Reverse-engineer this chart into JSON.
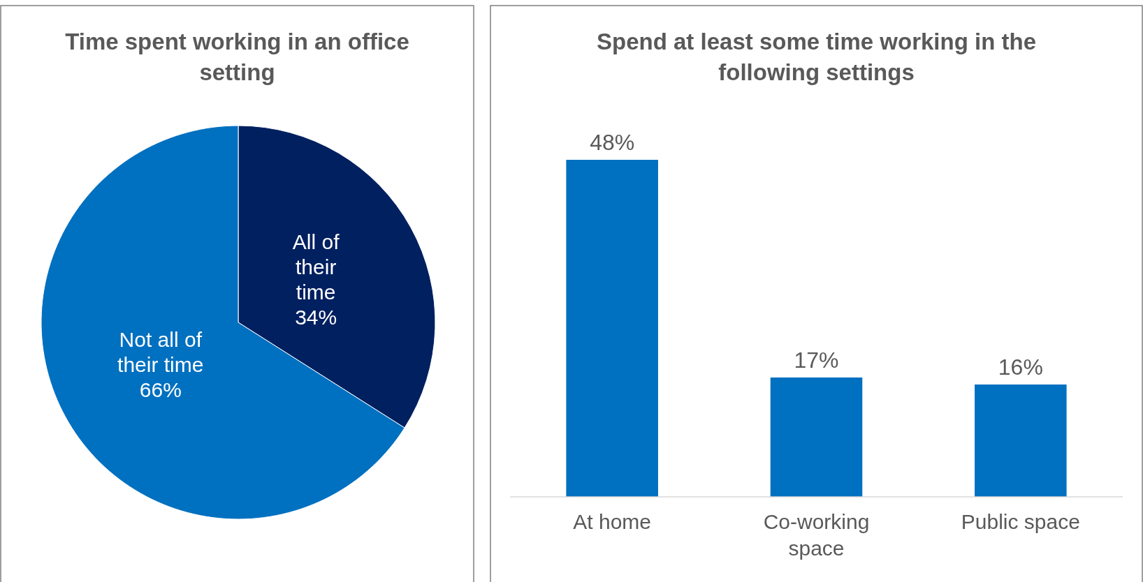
{
  "chart_data": [
    {
      "type": "pie",
      "title": "Time spent working in an office setting",
      "categories": [
        "All of their time",
        "Not all of their time"
      ],
      "values": [
        34,
        66
      ],
      "value_labels": [
        "34%",
        "66%"
      ],
      "colors": [
        "#002060",
        "#0070c0"
      ]
    },
    {
      "type": "bar",
      "title": "Spend at least some time working in the following settings",
      "categories": [
        "At home",
        "Co-working space",
        "Public space"
      ],
      "values": [
        48,
        17,
        16
      ],
      "value_labels": [
        "48%",
        "17%",
        "16%"
      ],
      "color": "#0070c0"
    }
  ]
}
